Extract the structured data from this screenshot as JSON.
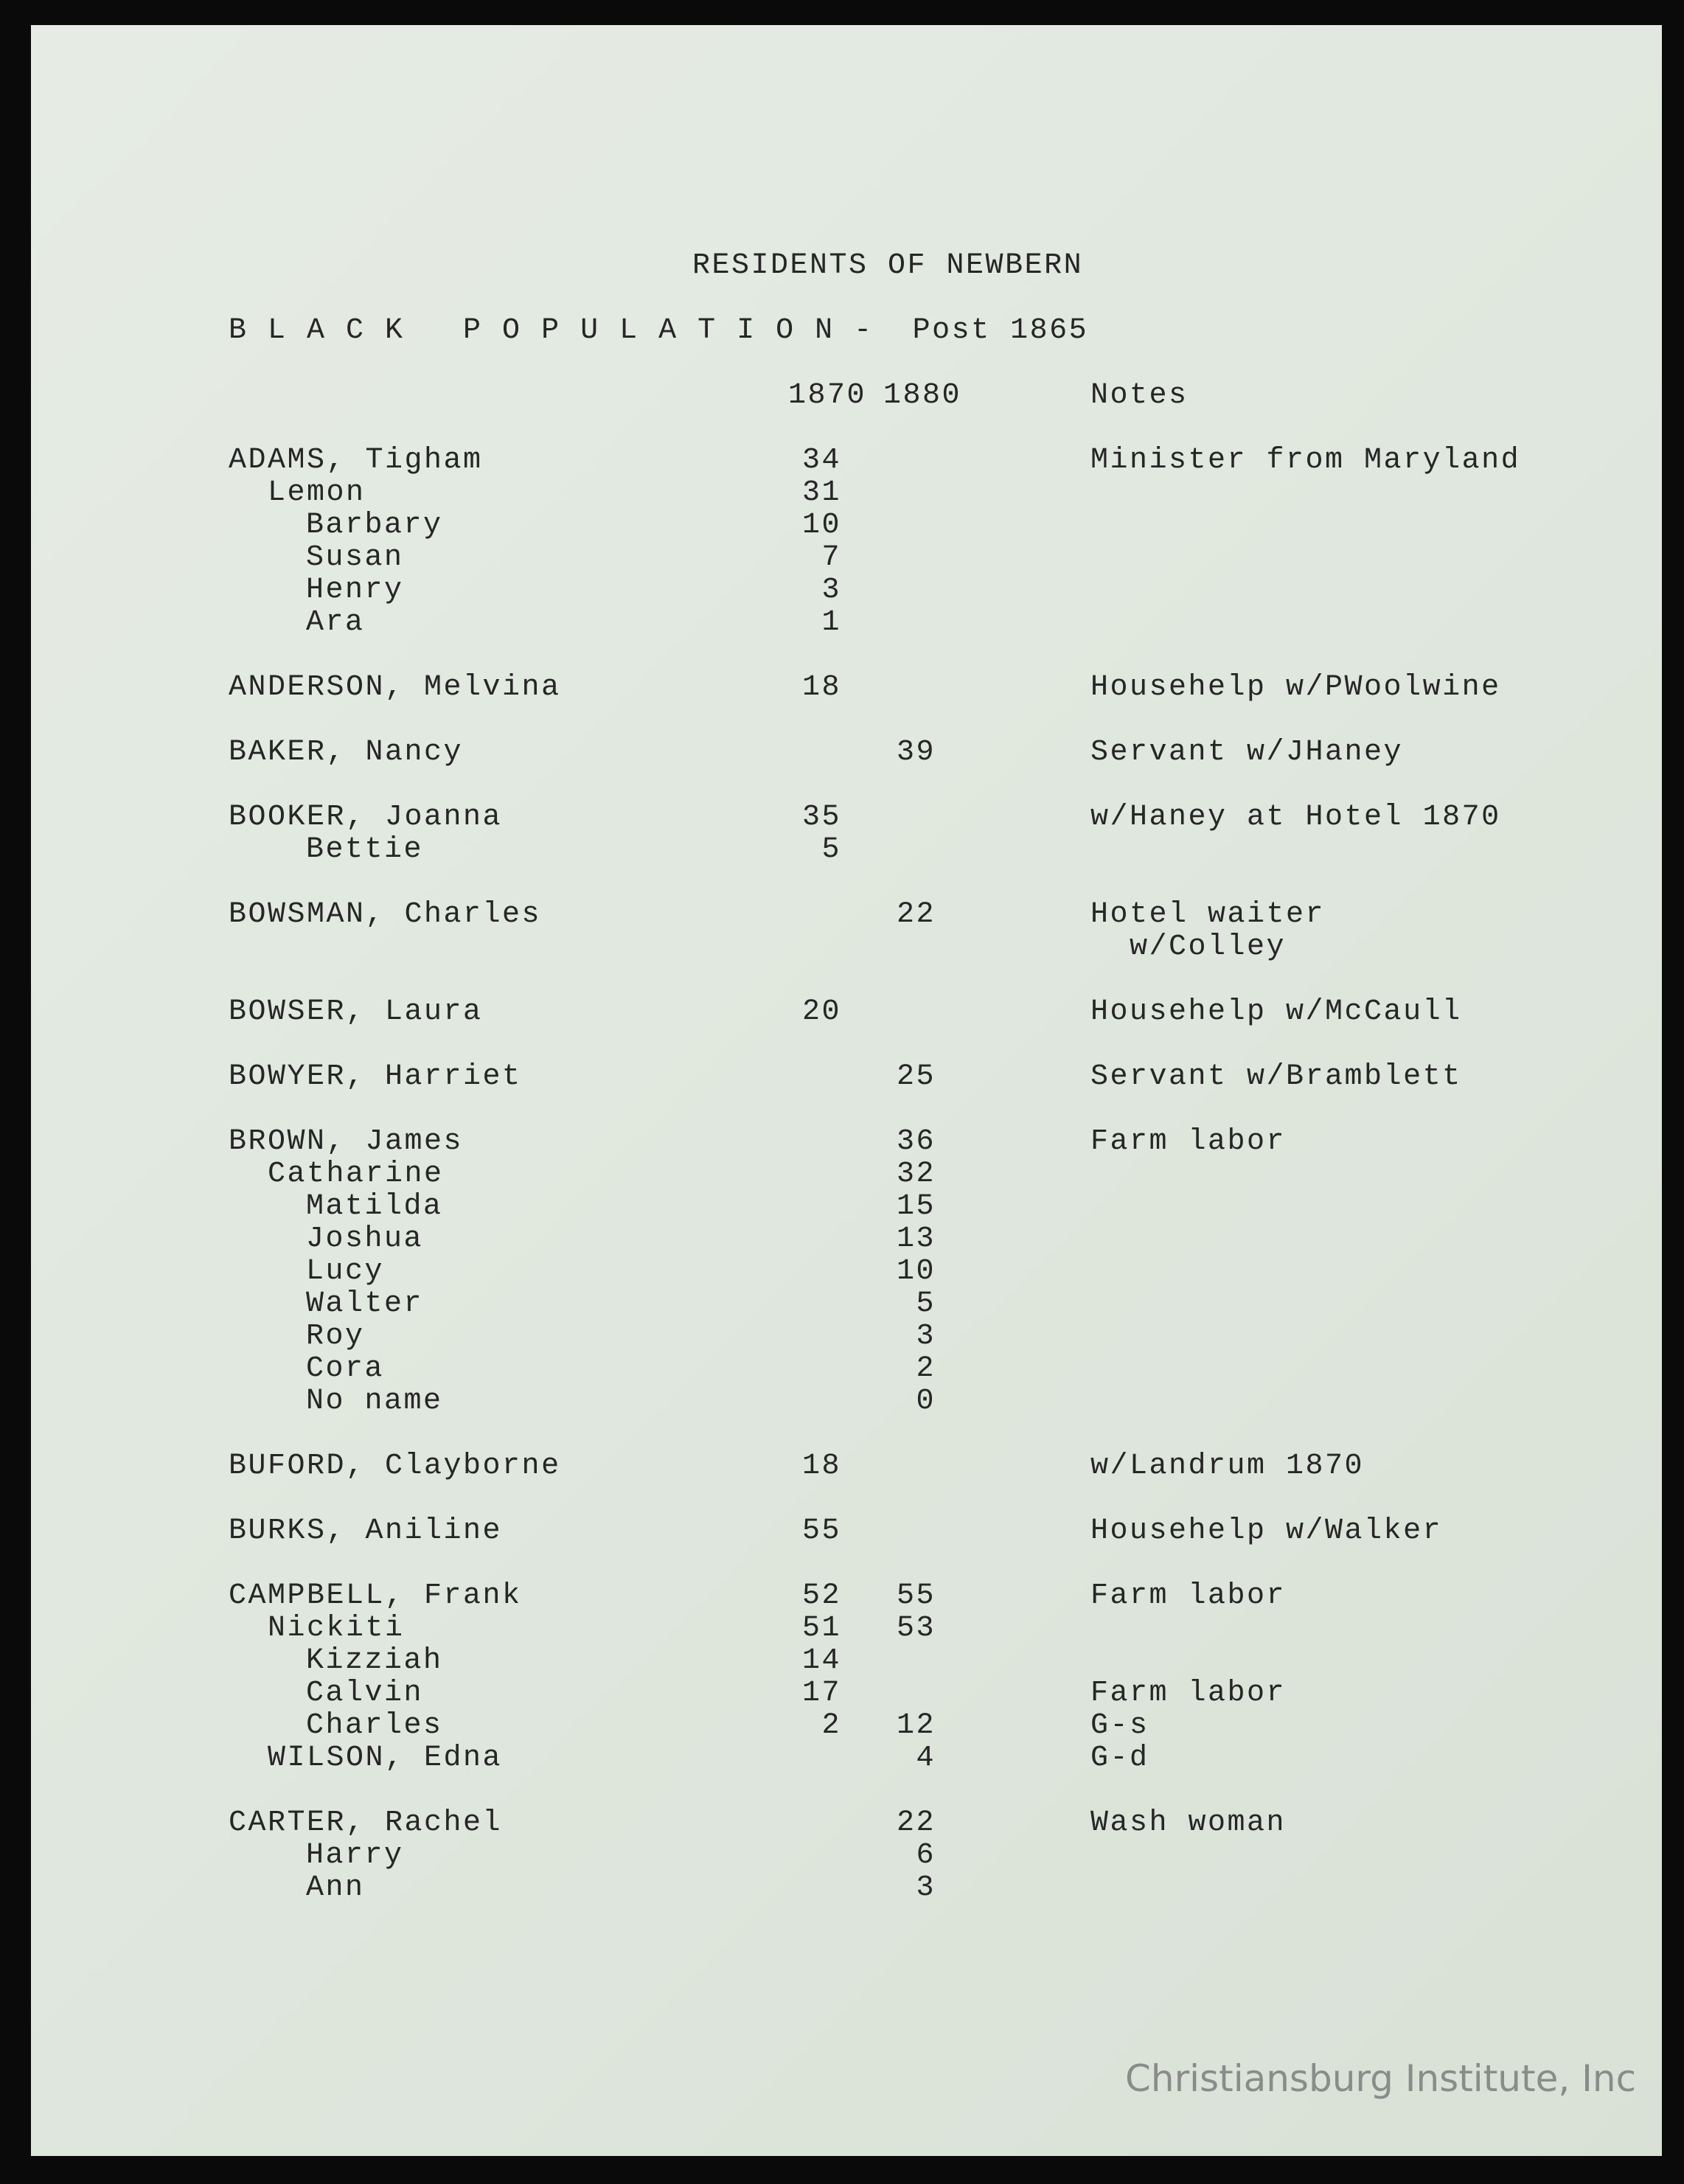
{
  "title": "RESIDENTS OF NEWBERN",
  "subtitle": "B L A C K   P O P U L A T I O N -  Post 1865",
  "headers": {
    "y1870": "1870",
    "y1880": "1880",
    "notes": "Notes"
  },
  "rows": [
    {
      "name": "ADAMS, Tigham",
      "indent": 0,
      "y1870": "34",
      "y1880": "",
      "note": "Minister from Maryland"
    },
    {
      "name": "Lemon",
      "indent": 1,
      "y1870": "31",
      "y1880": "",
      "note": ""
    },
    {
      "name": "Barbary",
      "indent": 2,
      "y1870": "10",
      "y1880": "",
      "note": ""
    },
    {
      "name": "Susan",
      "indent": 2,
      "y1870": "7",
      "y1880": "",
      "note": ""
    },
    {
      "name": "Henry",
      "indent": 2,
      "y1870": "3",
      "y1880": "",
      "note": ""
    },
    {
      "name": "Ara",
      "indent": 2,
      "y1870": "1",
      "y1880": "",
      "note": ""
    },
    {},
    {
      "name": "ANDERSON, Melvina",
      "indent": 0,
      "y1870": "18",
      "y1880": "",
      "note": "Househelp w/PWoolwine"
    },
    {},
    {
      "name": "BAKER, Nancy",
      "indent": 0,
      "y1870": "",
      "y1880": "39",
      "note": "Servant w/JHaney"
    },
    {},
    {
      "name": "BOOKER, Joanna",
      "indent": 0,
      "y1870": "35",
      "y1880": "",
      "note": "w/Haney at Hotel 1870"
    },
    {
      "name": "Bettie",
      "indent": 2,
      "y1870": "5",
      "y1880": "",
      "note": ""
    },
    {},
    {
      "name": "BOWSMAN, Charles",
      "indent": 0,
      "y1870": "",
      "y1880": "22",
      "note": "Hotel waiter"
    },
    {
      "name": "",
      "indent": 0,
      "y1870": "",
      "y1880": "",
      "note": "  w/Colley"
    },
    {},
    {
      "name": "BOWSER, Laura",
      "indent": 0,
      "y1870": "20",
      "y1880": "",
      "note": "Househelp w/McCaull"
    },
    {},
    {
      "name": "BOWYER, Harriet",
      "indent": 0,
      "y1870": "",
      "y1880": "25",
      "note": "Servant w/Bramblett"
    },
    {},
    {
      "name": "BROWN, James",
      "indent": 0,
      "y1870": "",
      "y1880": "36",
      "note": "Farm labor"
    },
    {
      "name": "Catharine",
      "indent": 1,
      "y1870": "",
      "y1880": "32",
      "note": ""
    },
    {
      "name": "Matilda",
      "indent": 2,
      "y1870": "",
      "y1880": "15",
      "note": ""
    },
    {
      "name": "Joshua",
      "indent": 2,
      "y1870": "",
      "y1880": "13",
      "note": ""
    },
    {
      "name": "Lucy",
      "indent": 2,
      "y1870": "",
      "y1880": "10",
      "note": ""
    },
    {
      "name": "Walter",
      "indent": 2,
      "y1870": "",
      "y1880": "5",
      "note": ""
    },
    {
      "name": "Roy",
      "indent": 2,
      "y1870": "",
      "y1880": "3",
      "note": ""
    },
    {
      "name": "Cora",
      "indent": 2,
      "y1870": "",
      "y1880": "2",
      "note": ""
    },
    {
      "name": "No name",
      "indent": 2,
      "y1870": "",
      "y1880": "0",
      "note": ""
    },
    {},
    {
      "name": "BUFORD, Clayborne",
      "indent": 0,
      "y1870": "18",
      "y1880": "",
      "note": "w/Landrum 1870"
    },
    {},
    {
      "name": "BURKS, Aniline",
      "indent": 0,
      "y1870": "55",
      "y1880": "",
      "note": "Househelp w/Walker"
    },
    {},
    {
      "name": "CAMPBELL, Frank",
      "indent": 0,
      "y1870": "52",
      "y1880": "55",
      "note": "Farm labor"
    },
    {
      "name": "Nickiti",
      "indent": 1,
      "y1870": "51",
      "y1880": "53",
      "note": ""
    },
    {
      "name": "Kizziah",
      "indent": 2,
      "y1870": "14",
      "y1880": "",
      "note": ""
    },
    {
      "name": "Calvin",
      "indent": 2,
      "y1870": "17",
      "y1880": "",
      "note": "Farm labor"
    },
    {
      "name": "Charles",
      "indent": 2,
      "y1870": "2",
      "y1880": "12",
      "note": "G-s"
    },
    {
      "name": "WILSON, Edna",
      "indent": 1,
      "y1870": "",
      "y1880": "4",
      "note": "G-d"
    },
    {},
    {
      "name": "CARTER, Rachel",
      "indent": 0,
      "y1870": "",
      "y1880": "22",
      "note": "Wash woman"
    },
    {
      "name": "Harry",
      "indent": 2,
      "y1870": "",
      "y1880": "6",
      "note": ""
    },
    {
      "name": "Ann",
      "indent": 2,
      "y1870": "",
      "y1880": "3",
      "note": ""
    }
  ],
  "watermark": "Christiansburg Institute, Inc"
}
